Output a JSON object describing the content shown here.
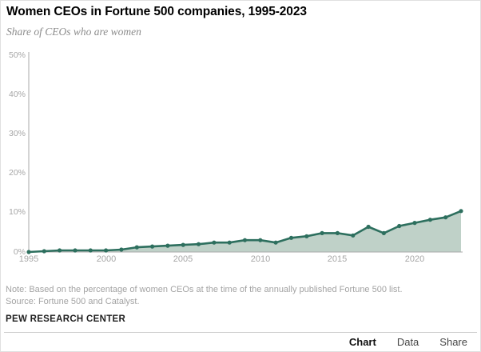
{
  "header": {
    "title": "Women CEOs in Fortune 500 companies, 1995-2023",
    "subtitle": "Share of CEOs who are women"
  },
  "chart_data": {
    "type": "area",
    "title": "Women CEOs in Fortune 500 companies, 1995-2023",
    "subtitle": "Share of CEOs who are women",
    "x": [
      1995,
      1996,
      1997,
      1998,
      1999,
      2000,
      2001,
      2002,
      2003,
      2004,
      2005,
      2006,
      2007,
      2008,
      2009,
      2010,
      2011,
      2012,
      2013,
      2014,
      2015,
      2016,
      2017,
      2018,
      2019,
      2020,
      2021,
      2022,
      2023
    ],
    "values": [
      0,
      0.2,
      0.4,
      0.4,
      0.4,
      0.4,
      0.6,
      1.2,
      1.4,
      1.6,
      1.8,
      2.0,
      2.4,
      2.4,
      3.0,
      3.0,
      2.4,
      3.6,
      4.0,
      4.8,
      4.8,
      4.2,
      6.4,
      4.8,
      6.6,
      7.4,
      8.2,
      8.8,
      10.4
    ],
    "unit": "%",
    "xlabel": "",
    "ylabel": "",
    "ylim": [
      0,
      50
    ],
    "y_ticks": [
      0,
      10,
      20,
      30,
      40,
      50
    ],
    "y_tick_labels": [
      "0%",
      "10%",
      "20%",
      "30%",
      "40%",
      "50%"
    ],
    "x_ticks": [
      1995,
      2000,
      2005,
      2010,
      2015,
      2020
    ],
    "grid": false,
    "legend": "none",
    "line_color": "#2d6f5e",
    "marker_color": "#2d6f5e",
    "fill_color": "#bfd1c8",
    "axis_color": "#aaaaaa",
    "tick_label_color": "#a6a6a6"
  },
  "footer": {
    "note": "Note: Based on the percentage of women CEOs at the time of the annually published Fortune 500 list.",
    "source": "Source: Fortune 500 and Catalyst.",
    "brand": "PEW RESEARCH CENTER"
  },
  "tabs": [
    {
      "label": "Chart",
      "active": true
    },
    {
      "label": "Data",
      "active": false
    },
    {
      "label": "Share",
      "active": false
    }
  ]
}
